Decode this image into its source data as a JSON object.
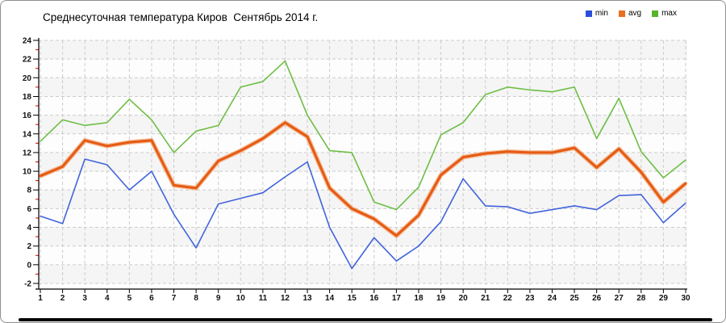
{
  "chart": {
    "title": "Среднесуточная температура Киров  Сентябрь 2014 г.",
    "legend": [
      {
        "label": "min",
        "color": "#2b4fd8"
      },
      {
        "label": "avg",
        "color": "#e87020"
      },
      {
        "label": "max",
        "color": "#56b42c"
      }
    ]
  },
  "chart_data": {
    "type": "line",
    "title": "Среднесуточная температура Киров  Сентябрь 2014 г.",
    "xlabel": "",
    "ylabel": "",
    "x": [
      1,
      2,
      3,
      4,
      5,
      6,
      7,
      8,
      9,
      10,
      11,
      12,
      13,
      14,
      15,
      16,
      17,
      18,
      19,
      20,
      21,
      22,
      23,
      24,
      25,
      26,
      27,
      28,
      29,
      30
    ],
    "ylim": [
      -2,
      24
    ],
    "ystep": 2,
    "grid": true,
    "legend_position": "top-right",
    "axis_colors": {
      "grid": "#cccccc",
      "axis": "#000000",
      "minor_tick": "#e00000",
      "band_a": "#f5f5f5",
      "band_b": "#fdfdfd"
    },
    "series": [
      {
        "name": "min",
        "color": "#4164dc",
        "width": 1.6,
        "values": [
          5.2,
          4.4,
          11.3,
          10.7,
          8.0,
          10.0,
          5.4,
          1.8,
          6.5,
          7.1,
          7.7,
          9.4,
          11.0,
          4.0,
          -0.4,
          2.9,
          0.4,
          2.0,
          4.6,
          9.2,
          6.3,
          6.2,
          5.5,
          5.9,
          6.3,
          5.9,
          7.4,
          7.5,
          4.5,
          6.6
        ]
      },
      {
        "name": "avg",
        "color": "#e55c15",
        "halo": "#f5af80",
        "width": 3.2,
        "values": [
          9.5,
          10.5,
          13.3,
          12.7,
          13.1,
          13.3,
          8.5,
          8.2,
          11.1,
          12.2,
          13.5,
          15.2,
          13.7,
          8.2,
          6.0,
          4.9,
          3.1,
          5.3,
          9.6,
          11.5,
          11.9,
          12.1,
          12.0,
          12.0,
          12.5,
          10.4,
          12.4,
          9.9,
          6.7,
          8.7
        ]
      },
      {
        "name": "max",
        "color": "#6dbe45",
        "width": 1.6,
        "values": [
          13.2,
          15.5,
          14.9,
          15.2,
          17.7,
          15.5,
          12.0,
          14.3,
          14.9,
          19.0,
          19.6,
          21.8,
          16.0,
          12.2,
          12.0,
          6.7,
          5.9,
          8.3,
          13.9,
          15.2,
          18.2,
          19.0,
          18.7,
          18.5,
          19.0,
          13.5,
          17.8,
          12.1,
          9.3,
          11.2
        ]
      }
    ]
  }
}
